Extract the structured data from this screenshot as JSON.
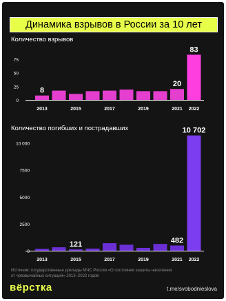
{
  "header": {
    "title": "Динамика взрывов в России за 10 лет"
  },
  "colors": {
    "background": "#141414",
    "title_bg": "#e8ff4a",
    "chart1_highlight": "#ff3ee0",
    "chart1_bar": "#e53fcf",
    "chart2_highlight": "#7c3cf0",
    "chart2_bar": "#6a30d6",
    "axis": "#ffffff",
    "label": "#ffffff"
  },
  "chart_data": [
    {
      "type": "bar",
      "title": "Количество взрывов",
      "categories": [
        "2013",
        "2014",
        "2015",
        "2016",
        "2017",
        "2018",
        "2019",
        "2020",
        "2021",
        "2022"
      ],
      "values": [
        8,
        17,
        11,
        16,
        17,
        19,
        16,
        16,
        20,
        83
      ],
      "x_tick_labels": [
        "2013",
        "2015",
        "2017",
        "2019",
        "2021",
        "2022"
      ],
      "y_ticks": [
        "0",
        "25",
        "50",
        "75"
      ],
      "ylim": [
        0,
        100
      ],
      "data_labels": [
        {
          "category": "2013",
          "text": "8"
        },
        {
          "category": "2021",
          "text": "20"
        },
        {
          "category": "2022",
          "text": "83"
        }
      ],
      "highlight_categories": [
        "2022"
      ],
      "grid": false
    },
    {
      "type": "bar",
      "title": "Количество погибших и пострадавших",
      "categories": [
        "2013",
        "2014",
        "2015",
        "2016",
        "2017",
        "2018",
        "2019",
        "2020",
        "2021",
        "2022"
      ],
      "values": [
        180,
        320,
        121,
        200,
        700,
        560,
        260,
        630,
        482,
        10702
      ],
      "x_tick_labels": [
        "2013",
        "2015",
        "2017",
        "2019",
        "2021",
        "2022"
      ],
      "y_ticks": [
        "0",
        "2500",
        "5000",
        "7500",
        "10 000"
      ],
      "ylim": [
        0,
        11000
      ],
      "data_labels": [
        {
          "category": "2015",
          "text": "121"
        },
        {
          "category": "2021",
          "text": "482"
        },
        {
          "category": "2022",
          "text": "10 702"
        }
      ],
      "highlight_categories": [
        "2022"
      ],
      "grid": false
    }
  ],
  "footer": {
    "source_line1": "Источник: государственные доклады МЧС России «О состоянии защиты населения",
    "source_line2": "от чрезвычайных ситуаций» 2013–2022 годов",
    "brand": "вёрстка",
    "link": "t.me/svobodnieslova"
  }
}
